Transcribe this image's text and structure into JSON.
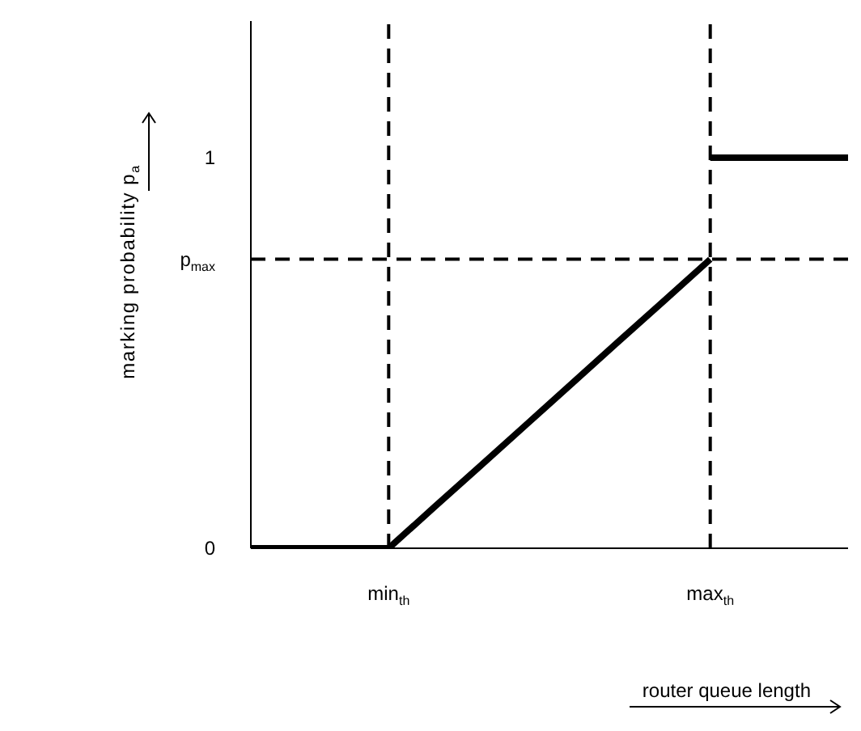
{
  "chart_data": {
    "type": "line",
    "xlabel": "router queue length",
    "ylabel": "marking probability p$_{a}$",
    "categories": [
      null,
      null,
      null,
      "min$_{th}$",
      null,
      null,
      null,
      null,
      null,
      null,
      "max$_{th}$",
      null,
      null,
      null
    ],
    "ylim": [
      0,
      1.35
    ],
    "yticks": [
      0,
      {
        "value": 0.74,
        "label": "p$_{max}$"
      },
      1
    ],
    "series": [
      {
        "color": "#000000",
        "values": [
          0,
          0,
          0,
          0,
          0.106,
          0.211,
          0.317,
          0.423,
          0.529,
          0.634,
          0.74,
          null,
          null,
          null
        ]
      },
      {
        "color": "#000000",
        "values": [
          null,
          null,
          null,
          null,
          null,
          null,
          null,
          null,
          null,
          null,
          1,
          1,
          1,
          1
        ]
      }
    ],
    "ref_lines": [
      {
        "axis": "x",
        "value": "min$_{th}$",
        "line_style": "dashed",
        "color": "#000000"
      },
      {
        "axis": "x",
        "value": "max$_{th}$",
        "line_style": "dashed",
        "color": "#000000"
      },
      {
        "axis": "y",
        "value": 0.74,
        "line_style": "dashed",
        "color": "#000000"
      }
    ],
    "line_style": "solid",
    "marker": "none"
  }
}
